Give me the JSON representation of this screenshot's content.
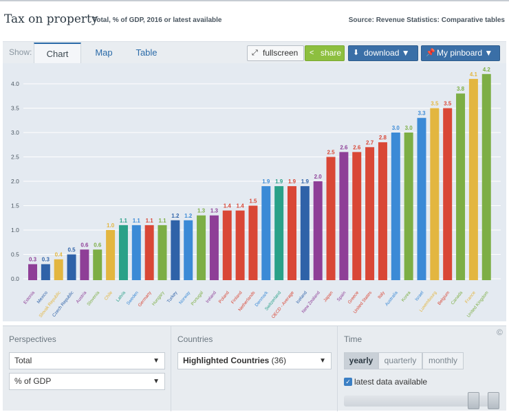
{
  "header": {
    "title": "Tax on property",
    "subtitle": "Total, % of GDP, 2016 or latest available",
    "source": "Source: Revenue Statistics: Comparative tables"
  },
  "toolbar": {
    "show_label": "Show:",
    "tabs": [
      "Chart",
      "Map",
      "Table"
    ],
    "active_tab": "Chart",
    "fullscreen_label": "fullscreen",
    "share_label": "share",
    "download_label": "download ▼",
    "pinboard_label": "My pinboard ▼"
  },
  "chart_data": {
    "type": "bar",
    "categories": [
      "Estonia",
      "Mexico",
      "Slovak Republic",
      "Czech Republic",
      "Austria",
      "Slovenia",
      "Chile",
      "Latvia",
      "Sweden",
      "Germany",
      "Hungary",
      "Turkey",
      "Norway",
      "Portugal",
      "Ireland",
      "Poland",
      "Finland",
      "Netherlands",
      "Denmark",
      "Switzerland",
      "OECD - Average",
      "Iceland",
      "New Zealand",
      "Japan",
      "Spain",
      "Greece",
      "United States",
      "Italy",
      "Australia",
      "Korea",
      "Israel",
      "Luxembourg",
      "Belgium",
      "Canada",
      "France",
      "United Kingdom"
    ],
    "values": [
      0.3,
      0.3,
      0.4,
      0.5,
      0.6,
      0.6,
      1.0,
      1.1,
      1.1,
      1.1,
      1.1,
      1.2,
      1.2,
      1.3,
      1.3,
      1.4,
      1.4,
      1.5,
      1.9,
      1.9,
      1.9,
      1.9,
      2.0,
      2.5,
      2.6,
      2.6,
      2.7,
      2.8,
      3.0,
      3.0,
      3.3,
      3.5,
      3.5,
      3.8,
      4.1,
      4.2
    ],
    "labels": [
      "0.3",
      "0.3",
      "0.4",
      "0.5",
      "0.6",
      "0.6",
      "1.0",
      "1.1",
      "1.1",
      "1.1",
      "1.1",
      "1.2",
      "1.2",
      "1.3",
      "1.3",
      "1.4",
      "1.4",
      "1.5",
      "1.9",
      "1.9",
      "1.9",
      "1.9",
      "2.0",
      "2.5",
      "2.6",
      "2.6",
      "2.7",
      "2.8",
      "3.0",
      "3.0",
      "3.3",
      "3.5",
      "3.5",
      "3.8",
      "4.1",
      "4.2"
    ],
    "colors": [
      "#8e3f97",
      "#2f62a8",
      "#e3b640",
      "#2f62a8",
      "#8e3f97",
      "#7dae45",
      "#e3b640",
      "#2aa188",
      "#3b8ad6",
      "#d94736",
      "#7dae45",
      "#2f62a8",
      "#3b8ad6",
      "#7dae45",
      "#8e3f97",
      "#d94736",
      "#d94736",
      "#d94736",
      "#3b8ad6",
      "#2aa188",
      "#d94736",
      "#2f62a8",
      "#8e3f97",
      "#d94736",
      "#8e3f97",
      "#d94736",
      "#d94736",
      "#d94736",
      "#3b8ad6",
      "#7dae45",
      "#3b8ad6",
      "#e3b640",
      "#d94736",
      "#7dae45",
      "#e3b640",
      "#7dae45"
    ],
    "ylim": [
      0,
      4.2
    ],
    "yticks": [
      "0.0",
      "0.5",
      "1.0",
      "1.5",
      "2.0",
      "2.5",
      "3.0",
      "3.5",
      "4.0"
    ],
    "grid": true
  },
  "perspectives": {
    "title": "Perspectives",
    "select1": "Total",
    "select2": "% of GDP"
  },
  "countries": {
    "title": "Countries",
    "select_label": "Highlighted Countries",
    "select_count": "(36)"
  },
  "time": {
    "title": "Time",
    "options": [
      "yearly",
      "quarterly",
      "monthly"
    ],
    "selected": "yearly",
    "latest_label": "latest data available",
    "latest_checked": true
  },
  "corner_mark": "©"
}
